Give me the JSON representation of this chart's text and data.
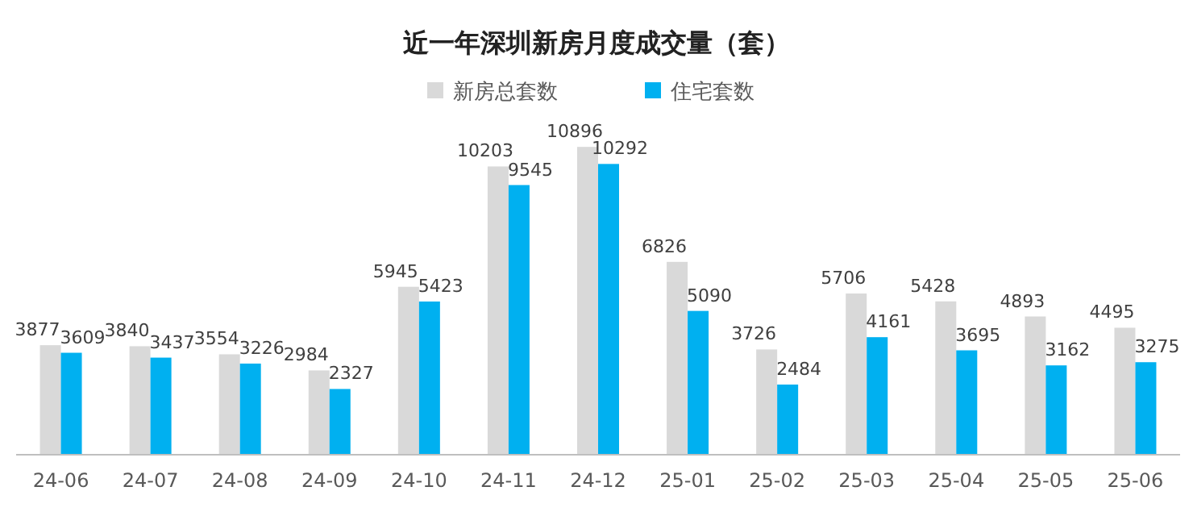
{
  "chart_data": {
    "type": "bar",
    "title": "近一年深圳新房月度成交量（套）",
    "categories": [
      "24-06",
      "24-07",
      "24-08",
      "24-09",
      "24-10",
      "24-11",
      "24-12",
      "25-01",
      "25-02",
      "25-03",
      "25-04",
      "25-05",
      "25-06"
    ],
    "series": [
      {
        "name": "新房总套数",
        "color": "#d9d9d9",
        "values": [
          3877,
          3840,
          3554,
          2984,
          5945,
          10203,
          10896,
          6826,
          3726,
          5706,
          5428,
          4893,
          4495
        ]
      },
      {
        "name": "住宅套数",
        "color": "#00b0f0",
        "values": [
          3609,
          3437,
          3226,
          2327,
          5423,
          9545,
          10292,
          5090,
          2484,
          4161,
          3695,
          3162,
          3275
        ]
      }
    ],
    "data_labels": true,
    "legend": "top"
  }
}
